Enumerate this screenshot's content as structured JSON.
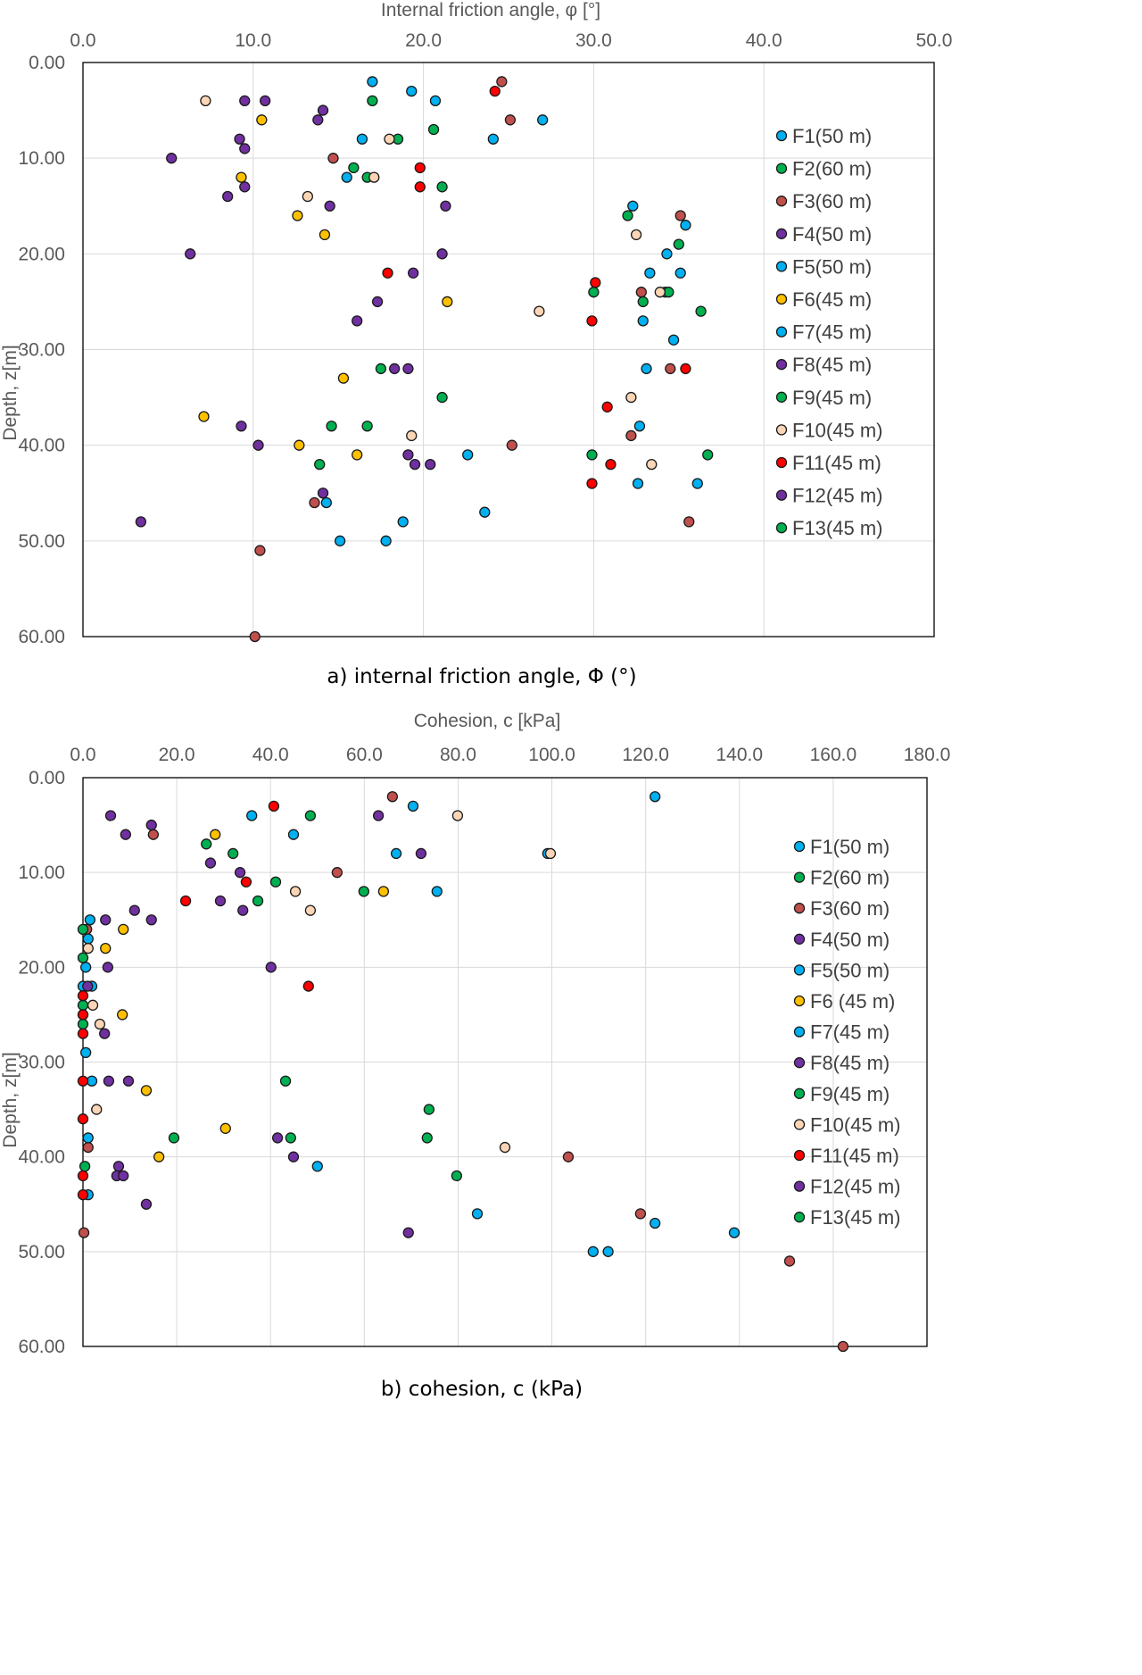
{
  "chart_data": [
    {
      "type": "scatter",
      "title": "Internal friction angle, φ [°]",
      "caption": "a) internal friction angle, Φ (°)",
      "xlabel": "Internal friction angle, φ [°]",
      "ylabel": "Depth, z[m]",
      "xlim": [
        0,
        50
      ],
      "ylim": [
        60,
        0
      ],
      "xticks": [
        "0.0",
        "10.0",
        "20.0",
        "30.0",
        "40.0",
        "50.0"
      ],
      "yticks": [
        "0.00",
        "10.00",
        "20.00",
        "30.00",
        "40.00",
        "50.00",
        "60.00"
      ],
      "grid": true,
      "legend": "right",
      "series": [
        {
          "name": "F1(50 m)",
          "color": "#00b0f0",
          "points": [
            [
              17.0,
              2
            ],
            [
              19.3,
              3
            ],
            [
              20.7,
              4
            ],
            [
              27.0,
              6
            ],
            [
              16.4,
              8
            ],
            [
              24.1,
              8
            ],
            [
              15.5,
              12
            ],
            [
              32.3,
              15
            ]
          ]
        },
        {
          "name": "F2(60 m)",
          "color": "#00b050",
          "points": [
            [
              17.0,
              4
            ],
            [
              18.5,
              8
            ],
            [
              20.6,
              7
            ],
            [
              15.9,
              11
            ],
            [
              16.7,
              12
            ],
            [
              21.1,
              13
            ]
          ]
        },
        {
          "name": "F3(60 m)",
          "color": "#c0504d",
          "points": [
            [
              24.6,
              2
            ],
            [
              25.1,
              6
            ],
            [
              14.7,
              10
            ],
            [
              35.1,
              16
            ],
            [
              32.8,
              24
            ],
            [
              34.5,
              32
            ],
            [
              32.2,
              39
            ],
            [
              25.2,
              40
            ],
            [
              13.6,
              46
            ],
            [
              35.6,
              48
            ],
            [
              10.4,
              51
            ],
            [
              10.1,
              60
            ]
          ]
        },
        {
          "name": "F4(50 m)",
          "color": "#7030a0",
          "points": [
            [
              9.5,
              4
            ],
            [
              10.7,
              4
            ],
            [
              14.1,
              5
            ],
            [
              13.8,
              6
            ],
            [
              9.2,
              8
            ],
            [
              9.5,
              9
            ],
            [
              5.2,
              10
            ],
            [
              9.5,
              13
            ],
            [
              8.5,
              14
            ]
          ]
        },
        {
          "name": "F5(50 m)",
          "color": "#00b0f0",
          "points": [
            [
              35.4,
              17
            ],
            [
              34.3,
              20
            ],
            [
              33.3,
              22
            ],
            [
              35.1,
              22
            ],
            [
              34.2,
              24
            ],
            [
              32.9,
              27
            ],
            [
              34.7,
              29
            ],
            [
              33.1,
              32
            ]
          ]
        },
        {
          "name": "F6(45 m)",
          "color": "#ffc000",
          "points": [
            [
              10.5,
              6
            ],
            [
              9.3,
              12
            ],
            [
              12.6,
              16
            ],
            [
              14.2,
              18
            ],
            [
              21.4,
              25
            ],
            [
              15.3,
              33
            ],
            [
              7.1,
              37
            ],
            [
              12.7,
              40
            ],
            [
              16.1,
              41
            ]
          ]
        },
        {
          "name": "F7(45 m)",
          "color": "#00b0f0",
          "points": [
            [
              32.7,
              38
            ],
            [
              22.6,
              41
            ],
            [
              32.6,
              44
            ],
            [
              36.1,
              44
            ],
            [
              23.6,
              47
            ],
            [
              18.8,
              48
            ],
            [
              14.3,
              46
            ],
            [
              15.1,
              50
            ],
            [
              17.8,
              50
            ]
          ]
        },
        {
          "name": "F8(45 m)",
          "color": "#7030a0",
          "points": [
            [
              14.5,
              15
            ],
            [
              21.3,
              15
            ],
            [
              21.1,
              20
            ],
            [
              6.3,
              20
            ],
            [
              19.4,
              22
            ],
            [
              17.3,
              25
            ],
            [
              16.1,
              27
            ],
            [
              18.3,
              32
            ]
          ]
        },
        {
          "name": "F9(45 m)",
          "color": "#00b050",
          "points": [
            [
              32.0,
              16
            ],
            [
              35.0,
              19
            ],
            [
              30.0,
              24
            ],
            [
              32.9,
              25
            ],
            [
              34.4,
              24
            ],
            [
              36.3,
              26
            ]
          ]
        },
        {
          "name": "F10(45 m)",
          "color": "#fbd5b5",
          "points": [
            [
              7.2,
              4
            ],
            [
              18.0,
              8
            ],
            [
              17.1,
              12
            ],
            [
              13.2,
              14
            ],
            [
              32.5,
              18
            ],
            [
              33.9,
              24
            ],
            [
              26.8,
              26
            ],
            [
              32.2,
              35
            ],
            [
              19.3,
              39
            ],
            [
              33.4,
              42
            ]
          ]
        },
        {
          "name": "F11(45 m)",
          "color": "#ff0000",
          "points": [
            [
              24.2,
              3
            ],
            [
              19.8,
              11
            ],
            [
              19.8,
              13
            ],
            [
              17.9,
              22
            ],
            [
              30.1,
              23
            ],
            [
              29.9,
              27
            ],
            [
              35.4,
              32
            ],
            [
              30.8,
              36
            ],
            [
              31.0,
              42
            ],
            [
              29.9,
              44
            ]
          ]
        },
        {
          "name": "F12(45 m)",
          "color": "#7030a0",
          "points": [
            [
              19.1,
              32
            ],
            [
              9.3,
              38
            ],
            [
              10.3,
              40
            ],
            [
              19.1,
              41
            ],
            [
              19.5,
              42
            ],
            [
              20.4,
              42
            ],
            [
              14.1,
              45
            ],
            [
              3.4,
              48
            ]
          ]
        },
        {
          "name": "F13(45 m)",
          "color": "#00b050",
          "points": [
            [
              17.5,
              32
            ],
            [
              21.1,
              35
            ],
            [
              14.6,
              38
            ],
            [
              16.7,
              38
            ],
            [
              13.9,
              42
            ],
            [
              29.9,
              41
            ],
            [
              36.7,
              41
            ]
          ]
        }
      ]
    },
    {
      "type": "scatter",
      "title": "Cohesion, c [kPa]",
      "caption": "b) cohesion, c (kPa)",
      "xlabel": "Cohesion, c [kPa]",
      "ylabel": "Depth, z[m]",
      "xlim": [
        0,
        180
      ],
      "ylim": [
        60,
        0
      ],
      "xticks": [
        "0.0",
        "20.0",
        "40.0",
        "60.0",
        "80.0",
        "100.0",
        "120.0",
        "140.0",
        "160.0",
        "180.0"
      ],
      "yticks": [
        "0.00",
        "10.00",
        "20.00",
        "30.00",
        "40.00",
        "50.00",
        "60.00"
      ],
      "grid": true,
      "legend": "right",
      "series": [
        {
          "name": "F1(50 m)",
          "color": "#00b0f0",
          "points": [
            [
              122,
              2
            ],
            [
              70.4,
              3
            ],
            [
              36,
              4
            ],
            [
              44.9,
              6
            ],
            [
              66.8,
              8
            ],
            [
              99.1,
              8
            ],
            [
              75.5,
              12
            ]
          ]
        },
        {
          "name": "F2(60 m)",
          "color": "#00b050",
          "points": [
            [
              48.5,
              4
            ],
            [
              26.3,
              7
            ],
            [
              32,
              8
            ],
            [
              41.1,
              11
            ],
            [
              59.9,
              12
            ],
            [
              37.3,
              13
            ]
          ]
        },
        {
          "name": "F3(60 m)",
          "color": "#c0504d",
          "points": [
            [
              66,
              2
            ],
            [
              15,
              6
            ],
            [
              54.2,
              10
            ],
            [
              0.8,
              16
            ],
            [
              1.1,
              39
            ],
            [
              103.5,
              40
            ],
            [
              118.9,
              46
            ],
            [
              0.2,
              48
            ],
            [
              150.7,
              51
            ],
            [
              162.1,
              60
            ]
          ]
        },
        {
          "name": "F4(50 m)",
          "color": "#7030a0",
          "points": [
            [
              5.9,
              4
            ],
            [
              63,
              4
            ],
            [
              14.6,
              5
            ],
            [
              9.1,
              6
            ],
            [
              72.1,
              8
            ],
            [
              27.2,
              9
            ],
            [
              33.5,
              10
            ],
            [
              29.3,
              13
            ]
          ]
        },
        {
          "name": "F5(50 m)",
          "color": "#00b0f0",
          "points": [
            [
              1.5,
              15
            ],
            [
              1.1,
              17
            ],
            [
              0.6,
              20
            ],
            [
              0,
              22
            ],
            [
              1.9,
              22
            ],
            [
              0.6,
              29
            ],
            [
              1.9,
              32
            ]
          ]
        },
        {
          "name": "F6 (45 m)",
          "color": "#ffc000",
          "points": [
            [
              28.2,
              6
            ],
            [
              64.1,
              12
            ],
            [
              8.6,
              16
            ],
            [
              4.8,
              18
            ],
            [
              8.4,
              25
            ],
            [
              13.5,
              33
            ],
            [
              30.4,
              37
            ],
            [
              16.2,
              40
            ]
          ]
        },
        {
          "name": "F7(45 m)",
          "color": "#00b0f0",
          "points": [
            [
              1.1,
              38
            ],
            [
              50,
              41
            ],
            [
              1.1,
              44
            ],
            [
              84.1,
              46
            ],
            [
              122,
              47
            ],
            [
              138.9,
              48
            ],
            [
              108.8,
              50
            ],
            [
              112,
              50
            ]
          ]
        },
        {
          "name": "F8(45 m)",
          "color": "#7030a0",
          "points": [
            [
              11,
              14
            ],
            [
              4.8,
              15
            ],
            [
              14.6,
              15
            ],
            [
              34.1,
              14
            ],
            [
              5.3,
              20
            ],
            [
              40.1,
              20
            ],
            [
              1,
              22
            ],
            [
              4.6,
              27
            ]
          ]
        },
        {
          "name": "F9(45 m)",
          "color": "#00b050",
          "points": [
            [
              0,
              16
            ],
            [
              0,
              19
            ],
            [
              0,
              24
            ],
            [
              0,
              25
            ],
            [
              0,
              26
            ],
            [
              43.2,
              32
            ]
          ]
        },
        {
          "name": "F10(45 m)",
          "color": "#fbd5b5",
          "points": [
            [
              79.9,
              4
            ],
            [
              99.7,
              8
            ],
            [
              45.3,
              12
            ],
            [
              48.5,
              14
            ],
            [
              1.1,
              18
            ],
            [
              2.1,
              24
            ],
            [
              3.6,
              26
            ],
            [
              2.9,
              35
            ],
            [
              90,
              39
            ]
          ]
        },
        {
          "name": "F11(45 m)",
          "color": "#ff0000",
          "points": [
            [
              40.7,
              3
            ],
            [
              34.8,
              11
            ],
            [
              21.9,
              13
            ],
            [
              0,
              23
            ],
            [
              48.1,
              22
            ],
            [
              0,
              25
            ],
            [
              0,
              27
            ],
            [
              0,
              32
            ],
            [
              0,
              36
            ],
            [
              0,
              42
            ],
            [
              0,
              44
            ]
          ]
        },
        {
          "name": "F12(45 m)",
          "color": "#7030a0",
          "points": [
            [
              5.5,
              32
            ],
            [
              9.7,
              32
            ],
            [
              41.5,
              38
            ],
            [
              44.9,
              40
            ],
            [
              7.6,
              41
            ],
            [
              7.2,
              42
            ],
            [
              8.6,
              42
            ],
            [
              13.5,
              45
            ],
            [
              69.4,
              48
            ]
          ]
        },
        {
          "name": "F13(45 m)",
          "color": "#00b050",
          "points": [
            [
              73.8,
              35
            ],
            [
              19.4,
              38
            ],
            [
              44.3,
              38
            ],
            [
              73.4,
              38
            ],
            [
              0.4,
              41
            ],
            [
              79.7,
              42
            ]
          ]
        }
      ]
    }
  ]
}
